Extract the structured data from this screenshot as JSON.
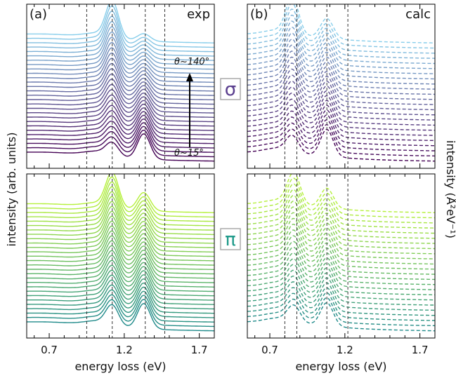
{
  "chart_data": [
    {
      "type": "line",
      "panel": "(a)",
      "title": "exp",
      "polarization": "σ",
      "xlabel": "energy loss (eV)",
      "ylabel": "intensity (arb. units)",
      "xlim": [
        0.55,
        1.8
      ],
      "x_ticks": [
        "0.7",
        "1.2",
        "1.7"
      ],
      "vlines": [
        0.95,
        1.12,
        1.34,
        1.47
      ],
      "annotations": {
        "top_angle": "θ~140°",
        "bottom_angle": "θ~15°"
      },
      "n_curves": 28,
      "line_style": "solid",
      "color_range": [
        "#440154",
        "#87ceeb"
      ],
      "peaks": [
        {
          "center": 1.12,
          "intensity_bottom": 0.35,
          "intensity_top": 1.0
        },
        {
          "center": 1.33,
          "intensity_bottom": 0.7,
          "intensity_top": 0.2
        }
      ]
    },
    {
      "type": "line",
      "panel": "(b)",
      "title": "calc",
      "polarization": "σ",
      "xlabel": "energy loss (eV)",
      "ylabel": "intensity (Å²eV⁻¹)",
      "xlim": [
        0.55,
        1.8
      ],
      "x_ticks": [
        "0.7",
        "1.2",
        "1.7"
      ],
      "vlines": [
        0.8,
        0.88,
        1.08,
        1.22
      ],
      "n_curves": 24,
      "line_style": "dashed",
      "color_range": [
        "#440154",
        "#87ceeb"
      ],
      "peaks": [
        {
          "center": 0.85,
          "intensity_bottom": 0.45,
          "intensity_top": 1.0
        },
        {
          "center": 1.08,
          "intensity_bottom": 0.75,
          "intensity_top": 0.55
        }
      ]
    },
    {
      "type": "line",
      "panel": "",
      "title": "",
      "polarization": "π",
      "xlabel": "energy loss (eV)",
      "ylabel": "intensity (arb. units)",
      "xlim": [
        0.55,
        1.8
      ],
      "x_ticks": [
        "0.7",
        "1.2",
        "1.7"
      ],
      "vlines": [
        0.95,
        1.12,
        1.34,
        1.47
      ],
      "n_curves": 28,
      "line_style": "solid",
      "color_range": [
        "#1f8a8a",
        "#b5f03a"
      ],
      "peaks": [
        {
          "center": 1.12,
          "intensity_bottom": 0.55,
          "intensity_top": 0.95
        },
        {
          "center": 1.33,
          "intensity_bottom": 0.7,
          "intensity_top": 0.5
        }
      ]
    },
    {
      "type": "line",
      "panel": "",
      "title": "",
      "polarization": "π",
      "xlabel": "energy loss (eV)",
      "ylabel": "intensity (Å²eV⁻¹)",
      "xlim": [
        0.55,
        1.8
      ],
      "x_ticks": [
        "0.7",
        "1.2",
        "1.7"
      ],
      "vlines": [
        0.8,
        0.88,
        1.08,
        1.22
      ],
      "n_curves": 24,
      "line_style": "dashed",
      "color_range": [
        "#1f8a8a",
        "#b5f03a"
      ],
      "peaks": [
        {
          "center": 0.86,
          "intensity_bottom": 0.45,
          "intensity_top": 0.85
        },
        {
          "center": 1.08,
          "intensity_bottom": 0.65,
          "intensity_top": 0.55
        }
      ]
    }
  ],
  "labels": {
    "sigma": "σ",
    "pi": "π",
    "left_ylabel": "intensity (arb. units)",
    "right_ylabel": "intensity (Å²eV⁻¹)",
    "xlabel": "energy loss (eV)"
  },
  "colors": {
    "sigma_symbol": "#5a3e8e",
    "pi_symbol": "#1f9a8a",
    "vline": "#333333"
  }
}
